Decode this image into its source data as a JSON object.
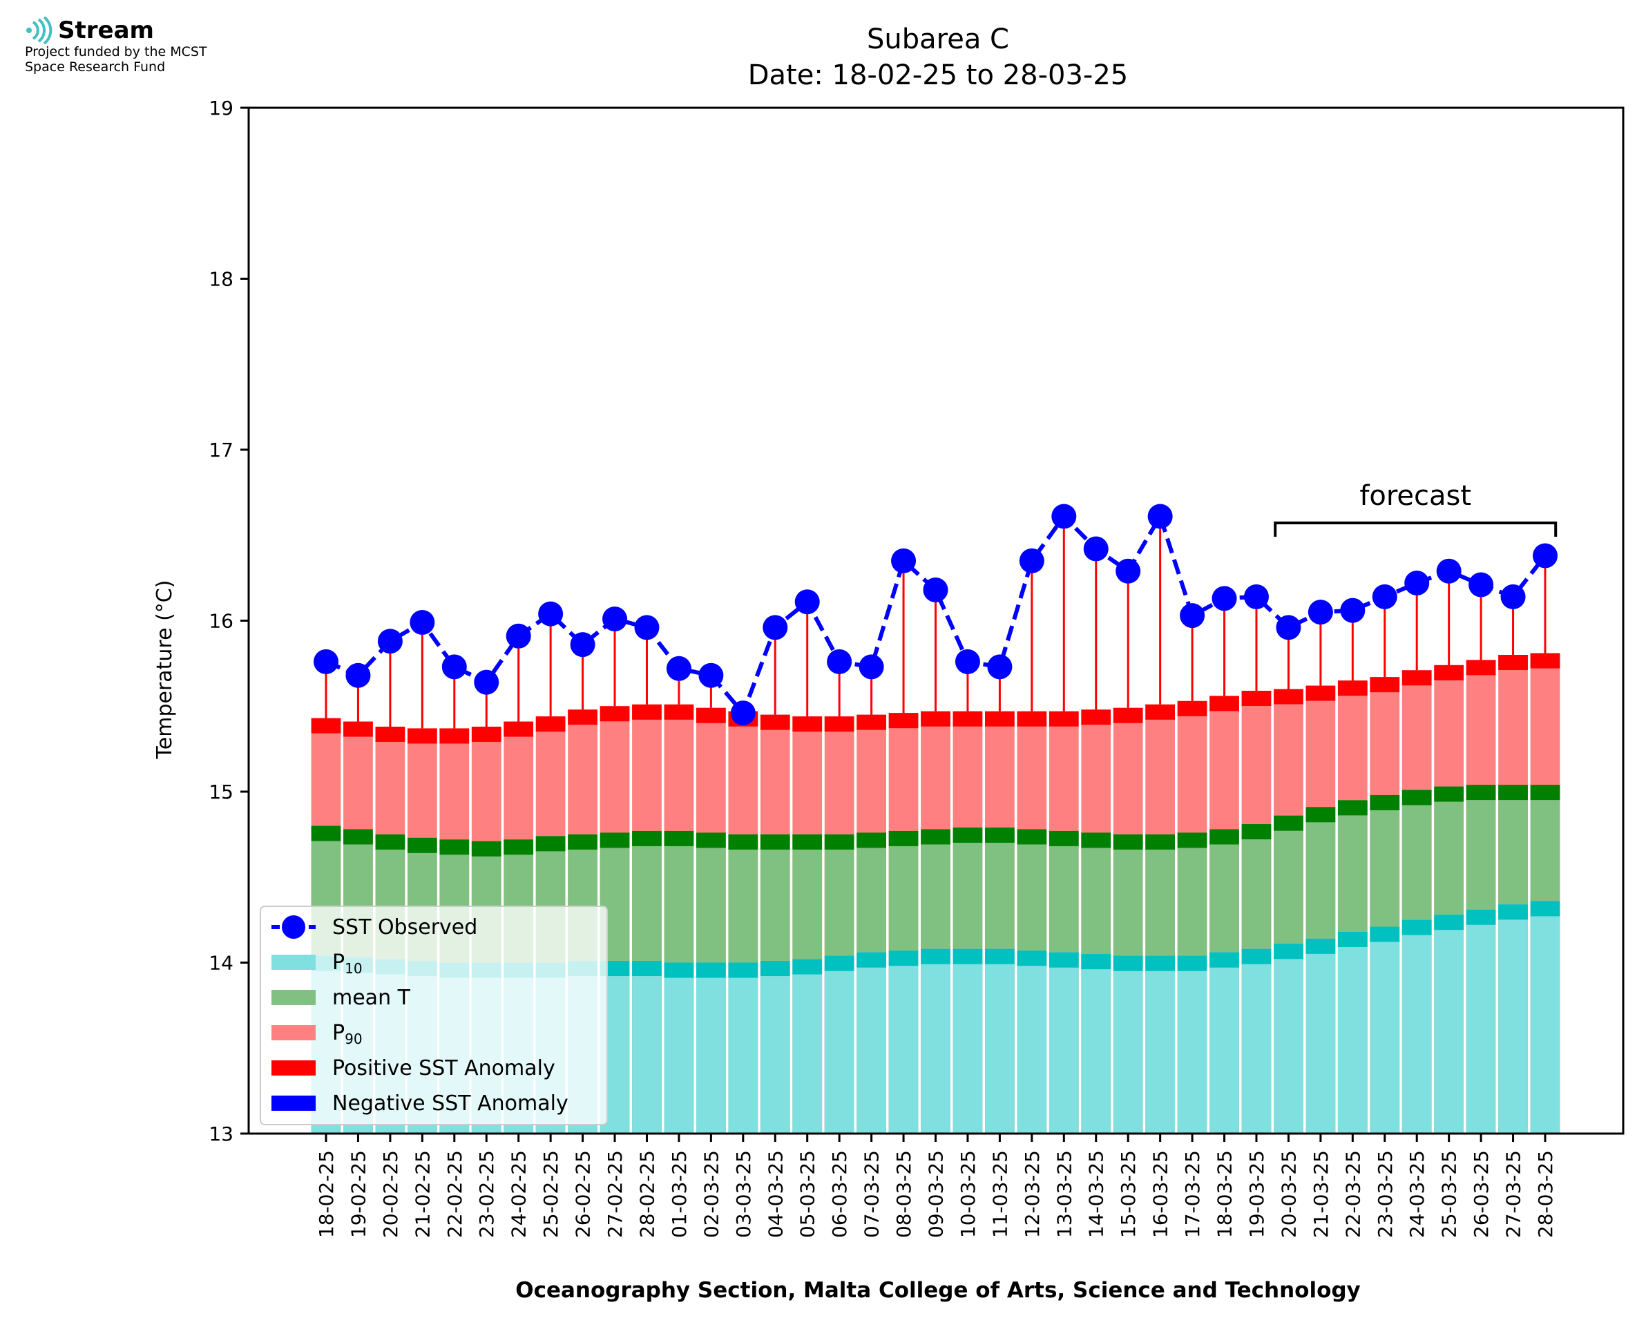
{
  "logo": {
    "brand": "Stream",
    "funding_line1": "Project funded by the MCST",
    "funding_line2": "Space Research Fund",
    "icon": "stream-waves-icon"
  },
  "chart_data": {
    "type": "bar",
    "title": "Subarea C",
    "subtitle": "Date: 18-02-25 to 28-03-25",
    "ylabel": "Temperature (°C)",
    "xlabel": "Oceanography Section, Malta College of Arts, Science and Technology",
    "ylim": [
      13,
      19
    ],
    "yticks": [
      13,
      14,
      15,
      16,
      17,
      18,
      19
    ],
    "forecast_label": "forecast",
    "forecast_range": [
      "20-03-25",
      "28-03-25"
    ],
    "legend_position": "lower-left",
    "colors": {
      "p10": "#80dfdf",
      "p10_edge": "#00c0c0",
      "mean": "#80c080",
      "mean_edge": "#008000",
      "p90": "#ff8080",
      "p90_edge": "#ff0000",
      "observed": "#0000ff",
      "positive_anomaly": "#ff0000",
      "negative_anomaly": "#0000ff"
    },
    "categories": [
      "18-02-25",
      "19-02-25",
      "20-02-25",
      "21-02-25",
      "22-02-25",
      "23-02-25",
      "24-02-25",
      "25-02-25",
      "26-02-25",
      "27-02-25",
      "28-02-25",
      "01-03-25",
      "02-03-25",
      "03-03-25",
      "04-03-25",
      "05-03-25",
      "06-03-25",
      "07-03-25",
      "08-03-25",
      "09-03-25",
      "10-03-25",
      "11-03-25",
      "12-03-25",
      "13-03-25",
      "14-03-25",
      "15-03-25",
      "16-03-25",
      "17-03-25",
      "18-03-25",
      "19-03-25",
      "20-03-25",
      "21-03-25",
      "22-03-25",
      "23-03-25",
      "24-03-25",
      "25-03-25",
      "26-03-25",
      "27-03-25",
      "28-03-25"
    ],
    "series": [
      {
        "name": "SST Observed",
        "values": [
          15.76,
          15.68,
          15.88,
          15.99,
          15.73,
          15.64,
          15.91,
          16.04,
          15.86,
          16.01,
          15.96,
          15.72,
          15.68,
          15.46,
          15.96,
          16.11,
          15.76,
          15.73,
          16.35,
          16.18,
          15.76,
          15.73,
          16.35,
          16.61,
          16.42,
          16.29,
          16.61,
          16.03,
          16.13,
          16.14,
          15.96,
          16.05,
          16.06,
          16.14,
          16.22,
          16.29,
          16.21,
          16.14,
          16.38
        ]
      },
      {
        "name": "P10",
        "values": [
          14.04,
          14.03,
          14.02,
          14.01,
          14.0,
          14.0,
          14.0,
          14.0,
          14.01,
          14.01,
          14.01,
          14.0,
          14.0,
          14.0,
          14.01,
          14.02,
          14.04,
          14.06,
          14.07,
          14.08,
          14.08,
          14.08,
          14.07,
          14.06,
          14.05,
          14.04,
          14.04,
          14.04,
          14.06,
          14.08,
          14.11,
          14.14,
          14.18,
          14.21,
          14.25,
          14.28,
          14.31,
          14.34,
          14.36
        ]
      },
      {
        "name": "mean T",
        "values": [
          14.8,
          14.78,
          14.75,
          14.73,
          14.72,
          14.71,
          14.72,
          14.74,
          14.75,
          14.76,
          14.77,
          14.77,
          14.76,
          14.75,
          14.75,
          14.75,
          14.75,
          14.76,
          14.77,
          14.78,
          14.79,
          14.79,
          14.78,
          14.77,
          14.76,
          14.75,
          14.75,
          14.76,
          14.78,
          14.81,
          14.86,
          14.91,
          14.95,
          14.98,
          15.01,
          15.03,
          15.04,
          15.04,
          15.04
        ]
      },
      {
        "name": "P90",
        "values": [
          15.43,
          15.41,
          15.38,
          15.37,
          15.37,
          15.38,
          15.41,
          15.44,
          15.48,
          15.5,
          15.51,
          15.51,
          15.49,
          15.47,
          15.45,
          15.44,
          15.44,
          15.45,
          15.46,
          15.47,
          15.47,
          15.47,
          15.47,
          15.47,
          15.48,
          15.49,
          15.51,
          15.53,
          15.56,
          15.59,
          15.6,
          15.62,
          15.65,
          15.67,
          15.71,
          15.74,
          15.77,
          15.8,
          15.81
        ]
      }
    ],
    "legend": [
      "SST Observed",
      "P10",
      "mean T",
      "P90",
      "Positive SST Anomaly",
      "Negative SST Anomaly"
    ]
  }
}
